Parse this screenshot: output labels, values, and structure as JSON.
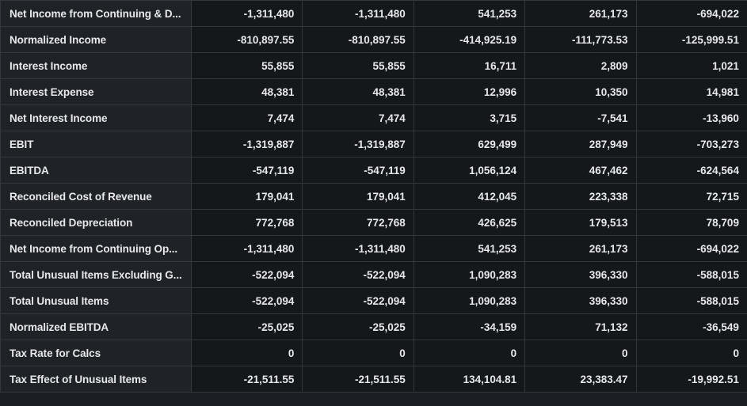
{
  "table": {
    "rows": [
      {
        "label": "Net Income from Continuing & D...",
        "values": [
          "-1,311,480",
          "-1,311,480",
          "541,253",
          "261,173",
          "-694,022"
        ]
      },
      {
        "label": "Normalized Income",
        "values": [
          "-810,897.55",
          "-810,897.55",
          "-414,925.19",
          "-111,773.53",
          "-125,999.51"
        ]
      },
      {
        "label": "Interest Income",
        "values": [
          "55,855",
          "55,855",
          "16,711",
          "2,809",
          "1,021"
        ]
      },
      {
        "label": "Interest Expense",
        "values": [
          "48,381",
          "48,381",
          "12,996",
          "10,350",
          "14,981"
        ]
      },
      {
        "label": "Net Interest Income",
        "values": [
          "7,474",
          "7,474",
          "3,715",
          "-7,541",
          "-13,960"
        ]
      },
      {
        "label": "EBIT",
        "values": [
          "-1,319,887",
          "-1,319,887",
          "629,499",
          "287,949",
          "-703,273"
        ]
      },
      {
        "label": "EBITDA",
        "values": [
          "-547,119",
          "-547,119",
          "1,056,124",
          "467,462",
          "-624,564"
        ]
      },
      {
        "label": "Reconciled Cost of Revenue",
        "values": [
          "179,041",
          "179,041",
          "412,045",
          "223,338",
          "72,715"
        ]
      },
      {
        "label": "Reconciled Depreciation",
        "values": [
          "772,768",
          "772,768",
          "426,625",
          "179,513",
          "78,709"
        ]
      },
      {
        "label": "Net Income from Continuing Op...",
        "values": [
          "-1,311,480",
          "-1,311,480",
          "541,253",
          "261,173",
          "-694,022"
        ]
      },
      {
        "label": "Total Unusual Items Excluding G...",
        "values": [
          "-522,094",
          "-522,094",
          "1,090,283",
          "396,330",
          "-588,015"
        ]
      },
      {
        "label": "Total Unusual Items",
        "values": [
          "-522,094",
          "-522,094",
          "1,090,283",
          "396,330",
          "-588,015"
        ]
      },
      {
        "label": "Normalized EBITDA",
        "values": [
          "-25,025",
          "-25,025",
          "-34,159",
          "71,132",
          "-36,549"
        ]
      },
      {
        "label": "Tax Rate for Calcs",
        "values": [
          "0",
          "0",
          "0",
          "0",
          "0"
        ]
      },
      {
        "label": "Tax Effect of Unusual Items",
        "values": [
          "-21,511.55",
          "-21,511.55",
          "134,104.81",
          "23,383.47",
          "-19,992.51"
        ]
      }
    ]
  }
}
